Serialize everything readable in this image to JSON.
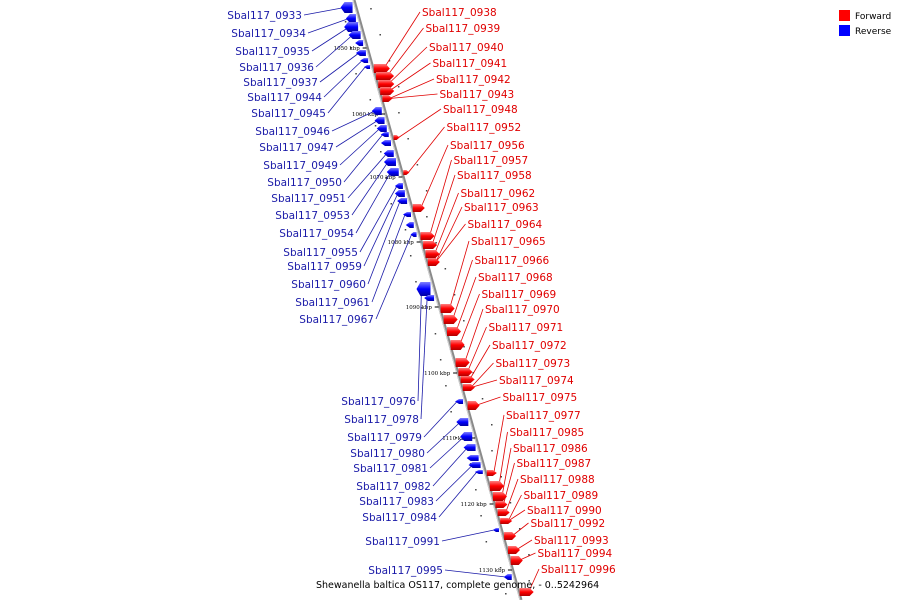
{
  "caption": "Shewanella baltica OS117, complete genome, - 0..5242964",
  "legend": [
    {
      "label": "Forward",
      "color": "#ff0000"
    },
    {
      "label": "Reverse",
      "color": "#0000ff"
    }
  ],
  "ticks": [
    "1050 kbp",
    "1060 kbp",
    "1070 kbp",
    "1080 kbp",
    "1090 kbp",
    "1100 kbp",
    "1110 kbp",
    "1120 kbp",
    "1130 kbp"
  ],
  "forward_genes": [
    "Sbal117_0938",
    "Sbal117_0939",
    "Sbal117_0940",
    "Sbal117_0941",
    "Sbal117_0942",
    "Sbal117_0943",
    "Sbal117_0948",
    "Sbal117_0952",
    "Sbal117_0956",
    "Sbal117_0957",
    "Sbal117_0958",
    "Sbal117_0962",
    "Sbal117_0963",
    "Sbal117_0964",
    "Sbal117_0965",
    "Sbal117_0966",
    "Sbal117_0968",
    "Sbal117_0969",
    "Sbal117_0970",
    "Sbal117_0971",
    "Sbal117_0972",
    "Sbal117_0973",
    "Sbal117_0974",
    "Sbal117_0975",
    "Sbal117_0977",
    "Sbal117_0985",
    "Sbal117_0986",
    "Sbal117_0987",
    "Sbal117_0988",
    "Sbal117_0989",
    "Sbal117_0990",
    "Sbal117_0992",
    "Sbal117_0993",
    "Sbal117_0994",
    "Sbal117_0996"
  ],
  "reverse_genes": [
    "Sbal117_0933",
    "Sbal117_0934",
    "Sbal117_0935",
    "Sbal117_0936",
    "Sbal117_0937",
    "Sbal117_0944",
    "Sbal117_0945",
    "Sbal117_0946",
    "Sbal117_0947",
    "Sbal117_0949",
    "Sbal117_0950",
    "Sbal117_0951",
    "Sbal117_0953",
    "Sbal117_0954",
    "Sbal117_0955",
    "Sbal117_0959",
    "Sbal117_0960",
    "Sbal117_0961",
    "Sbal117_0967",
    "Sbal117_0976",
    "Sbal117_0978",
    "Sbal117_0979",
    "Sbal117_0980",
    "Sbal117_0981",
    "Sbal117_0982",
    "Sbal117_0983",
    "Sbal117_0984",
    "Sbal117_0991",
    "Sbal117_0995"
  ]
}
